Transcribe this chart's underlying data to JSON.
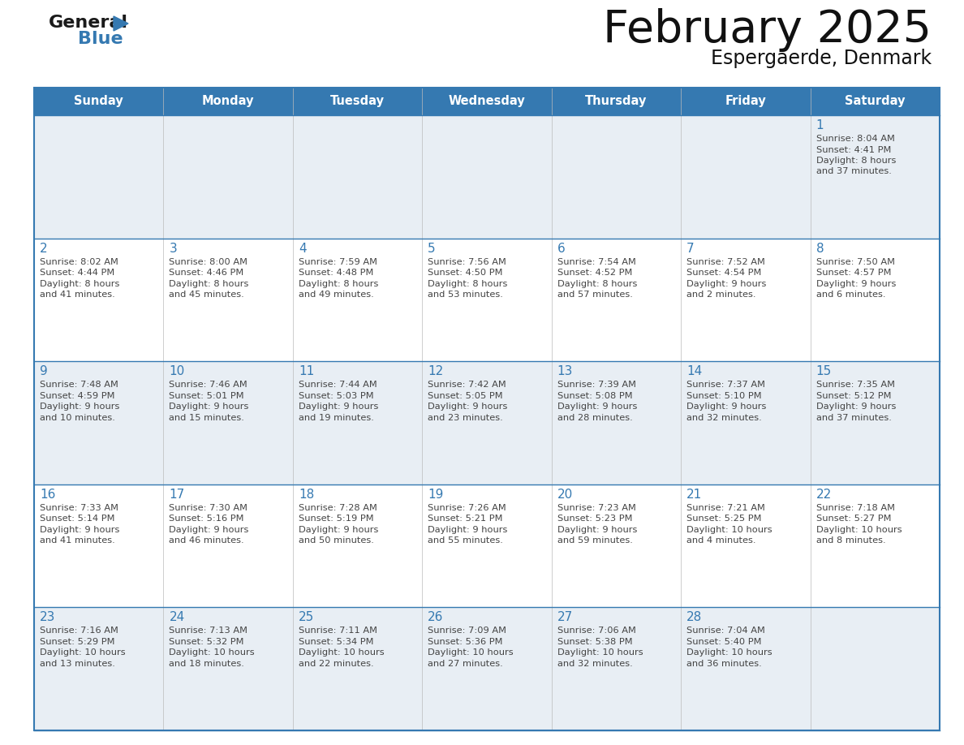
{
  "title": "February 2025",
  "subtitle": "Espergaerde, Denmark",
  "header_color": "#3579b1",
  "header_text_color": "#ffffff",
  "cell_bg_color": "#ffffff",
  "alt_cell_bg_color": "#e8eef4",
  "day_number_color": "#3579b1",
  "text_color": "#444444",
  "line_color": "#3579b1",
  "days_of_week": [
    "Sunday",
    "Monday",
    "Tuesday",
    "Wednesday",
    "Thursday",
    "Friday",
    "Saturday"
  ],
  "calendar_data": [
    [
      null,
      null,
      null,
      null,
      null,
      null,
      {
        "day": "1",
        "sunrise": "8:04 AM",
        "sunset": "4:41 PM",
        "daylight_h": "8 hours",
        "daylight_m": "and 37 minutes."
      }
    ],
    [
      {
        "day": "2",
        "sunrise": "8:02 AM",
        "sunset": "4:44 PM",
        "daylight_h": "8 hours",
        "daylight_m": "and 41 minutes."
      },
      {
        "day": "3",
        "sunrise": "8:00 AM",
        "sunset": "4:46 PM",
        "daylight_h": "8 hours",
        "daylight_m": "and 45 minutes."
      },
      {
        "day": "4",
        "sunrise": "7:59 AM",
        "sunset": "4:48 PM",
        "daylight_h": "8 hours",
        "daylight_m": "and 49 minutes."
      },
      {
        "day": "5",
        "sunrise": "7:56 AM",
        "sunset": "4:50 PM",
        "daylight_h": "8 hours",
        "daylight_m": "and 53 minutes."
      },
      {
        "day": "6",
        "sunrise": "7:54 AM",
        "sunset": "4:52 PM",
        "daylight_h": "8 hours",
        "daylight_m": "and 57 minutes."
      },
      {
        "day": "7",
        "sunrise": "7:52 AM",
        "sunset": "4:54 PM",
        "daylight_h": "9 hours",
        "daylight_m": "and 2 minutes."
      },
      {
        "day": "8",
        "sunrise": "7:50 AM",
        "sunset": "4:57 PM",
        "daylight_h": "9 hours",
        "daylight_m": "and 6 minutes."
      }
    ],
    [
      {
        "day": "9",
        "sunrise": "7:48 AM",
        "sunset": "4:59 PM",
        "daylight_h": "9 hours",
        "daylight_m": "and 10 minutes."
      },
      {
        "day": "10",
        "sunrise": "7:46 AM",
        "sunset": "5:01 PM",
        "daylight_h": "9 hours",
        "daylight_m": "and 15 minutes."
      },
      {
        "day": "11",
        "sunrise": "7:44 AM",
        "sunset": "5:03 PM",
        "daylight_h": "9 hours",
        "daylight_m": "and 19 minutes."
      },
      {
        "day": "12",
        "sunrise": "7:42 AM",
        "sunset": "5:05 PM",
        "daylight_h": "9 hours",
        "daylight_m": "and 23 minutes."
      },
      {
        "day": "13",
        "sunrise": "7:39 AM",
        "sunset": "5:08 PM",
        "daylight_h": "9 hours",
        "daylight_m": "and 28 minutes."
      },
      {
        "day": "14",
        "sunrise": "7:37 AM",
        "sunset": "5:10 PM",
        "daylight_h": "9 hours",
        "daylight_m": "and 32 minutes."
      },
      {
        "day": "15",
        "sunrise": "7:35 AM",
        "sunset": "5:12 PM",
        "daylight_h": "9 hours",
        "daylight_m": "and 37 minutes."
      }
    ],
    [
      {
        "day": "16",
        "sunrise": "7:33 AM",
        "sunset": "5:14 PM",
        "daylight_h": "9 hours",
        "daylight_m": "and 41 minutes."
      },
      {
        "day": "17",
        "sunrise": "7:30 AM",
        "sunset": "5:16 PM",
        "daylight_h": "9 hours",
        "daylight_m": "and 46 minutes."
      },
      {
        "day": "18",
        "sunrise": "7:28 AM",
        "sunset": "5:19 PM",
        "daylight_h": "9 hours",
        "daylight_m": "and 50 minutes."
      },
      {
        "day": "19",
        "sunrise": "7:26 AM",
        "sunset": "5:21 PM",
        "daylight_h": "9 hours",
        "daylight_m": "and 55 minutes."
      },
      {
        "day": "20",
        "sunrise": "7:23 AM",
        "sunset": "5:23 PM",
        "daylight_h": "9 hours",
        "daylight_m": "and 59 minutes."
      },
      {
        "day": "21",
        "sunrise": "7:21 AM",
        "sunset": "5:25 PM",
        "daylight_h": "10 hours",
        "daylight_m": "and 4 minutes."
      },
      {
        "day": "22",
        "sunrise": "7:18 AM",
        "sunset": "5:27 PM",
        "daylight_h": "10 hours",
        "daylight_m": "and 8 minutes."
      }
    ],
    [
      {
        "day": "23",
        "sunrise": "7:16 AM",
        "sunset": "5:29 PM",
        "daylight_h": "10 hours",
        "daylight_m": "and 13 minutes."
      },
      {
        "day": "24",
        "sunrise": "7:13 AM",
        "sunset": "5:32 PM",
        "daylight_h": "10 hours",
        "daylight_m": "and 18 minutes."
      },
      {
        "day": "25",
        "sunrise": "7:11 AM",
        "sunset": "5:34 PM",
        "daylight_h": "10 hours",
        "daylight_m": "and 22 minutes."
      },
      {
        "day": "26",
        "sunrise": "7:09 AM",
        "sunset": "5:36 PM",
        "daylight_h": "10 hours",
        "daylight_m": "and 27 minutes."
      },
      {
        "day": "27",
        "sunrise": "7:06 AM",
        "sunset": "5:38 PM",
        "daylight_h": "10 hours",
        "daylight_m": "and 32 minutes."
      },
      {
        "day": "28",
        "sunrise": "7:04 AM",
        "sunset": "5:40 PM",
        "daylight_h": "10 hours",
        "daylight_m": "and 36 minutes."
      },
      null
    ]
  ]
}
